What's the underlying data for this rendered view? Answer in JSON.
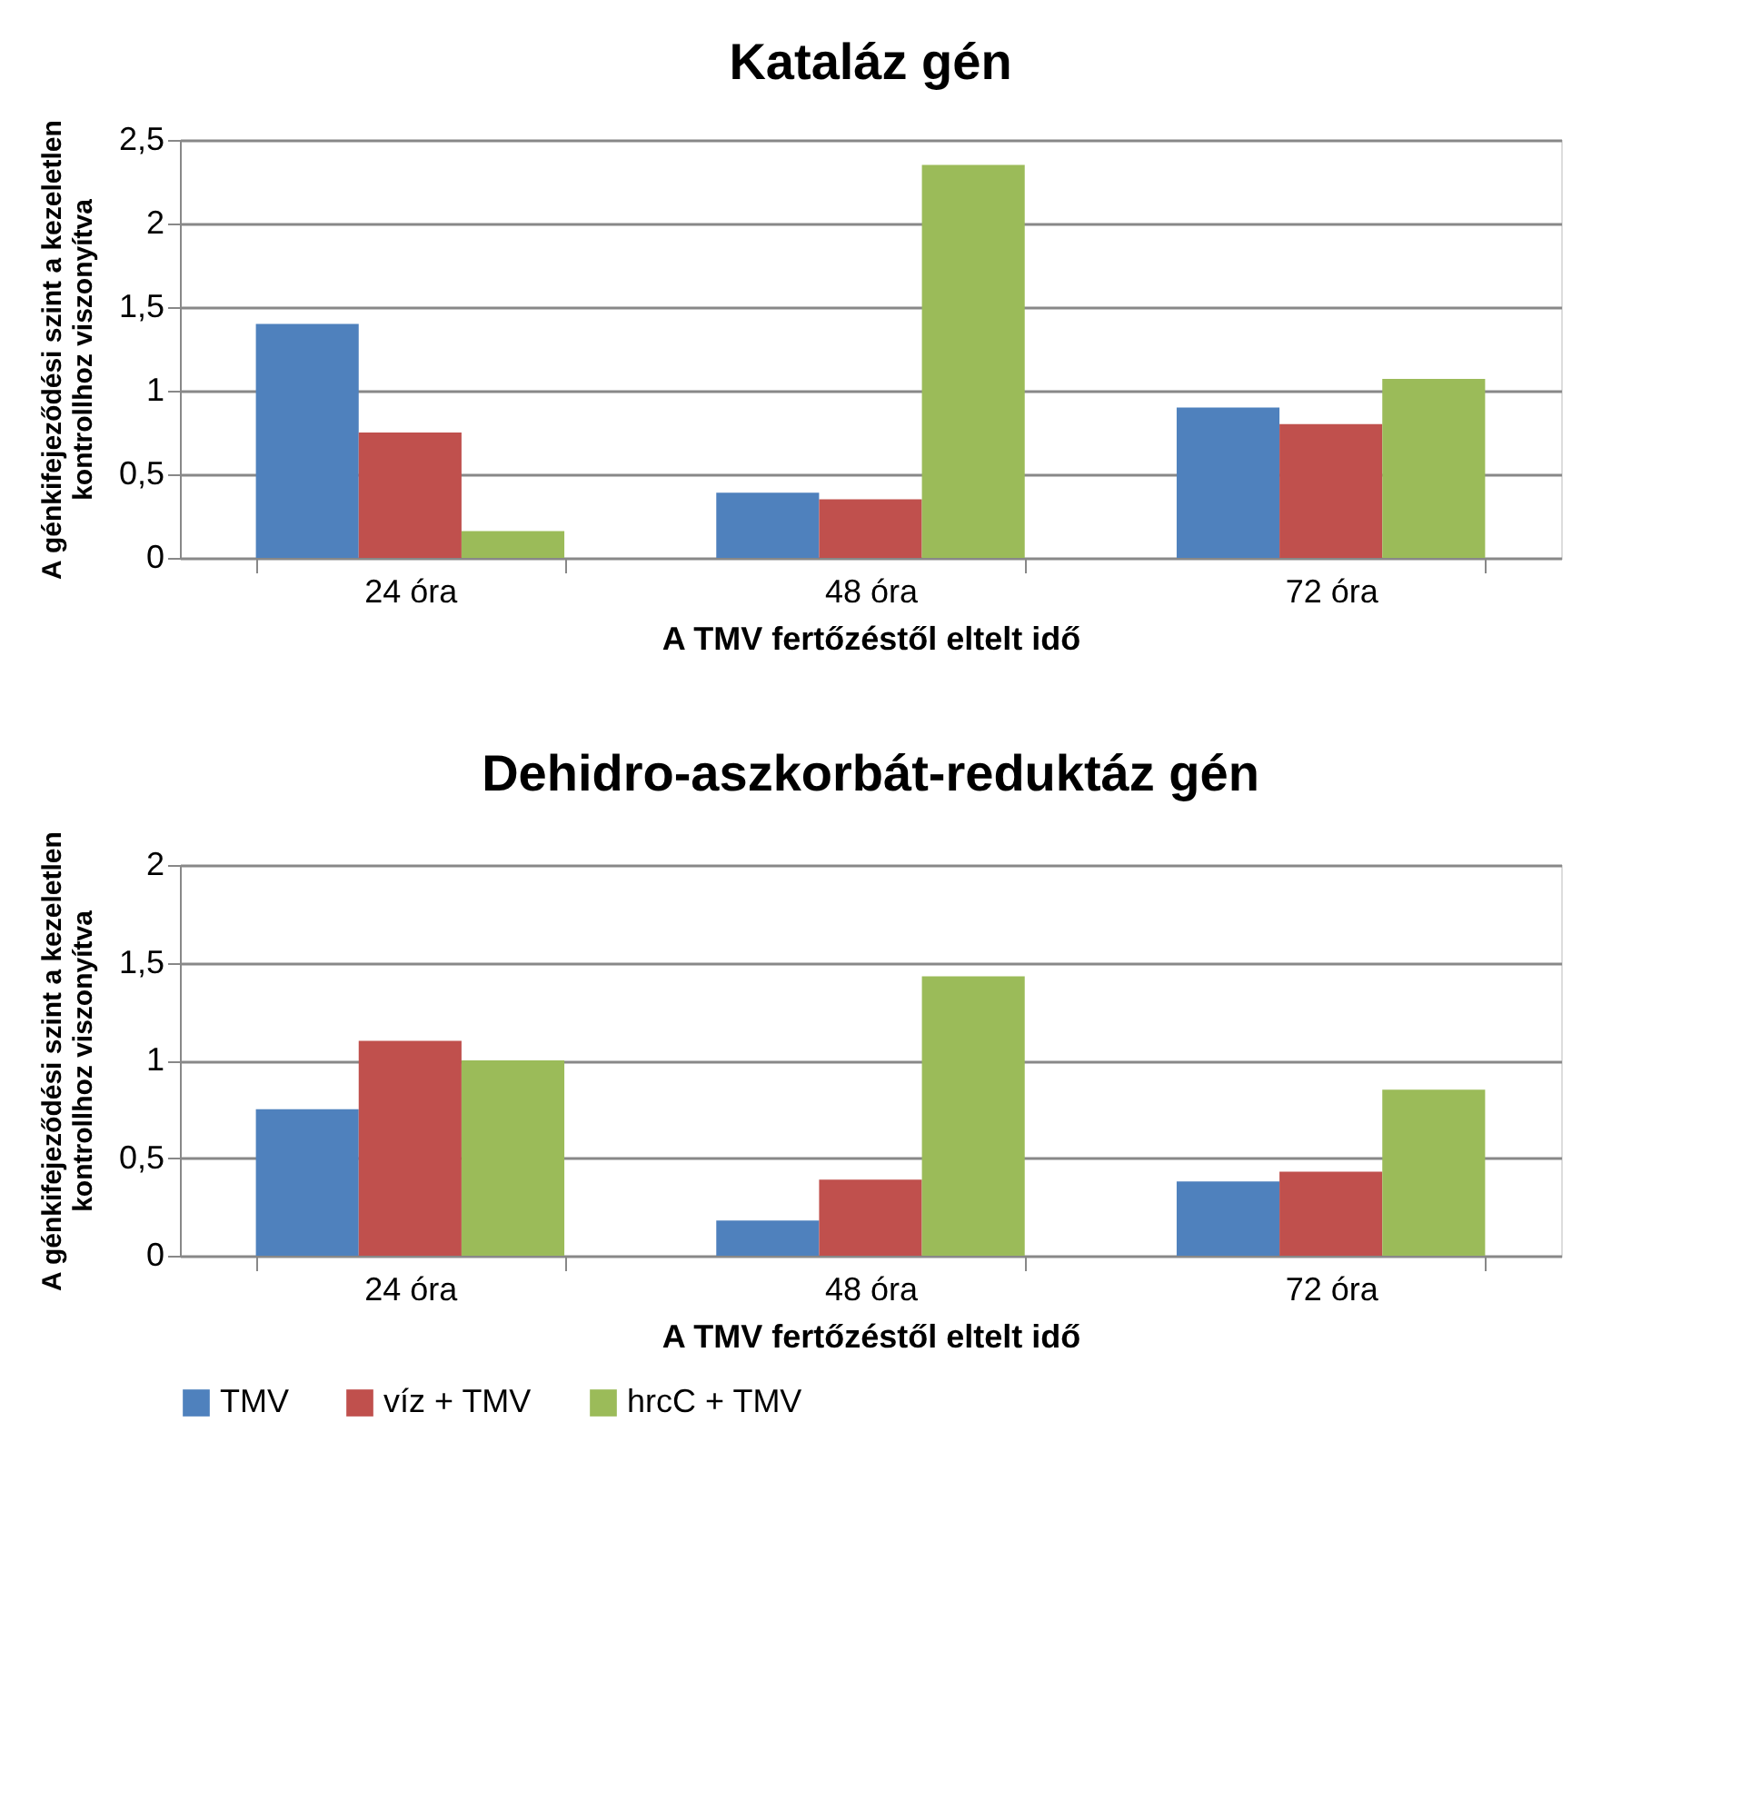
{
  "chart_data": [
    {
      "type": "bar",
      "title": "Kataláz gén",
      "xlabel": "A TMV fertőzéstől eltelt idő",
      "ylabel": "A génkifejeződési szint a kezeletlen\nkontrollhoz viszonyítva",
      "categories": [
        "24 óra",
        "48 óra",
        "72 óra"
      ],
      "series": [
        {
          "color": "#4f81bd",
          "values": [
            1.4,
            0.39,
            0.9
          ]
        },
        {
          "color": "#c0504d",
          "values": [
            0.75,
            0.35,
            0.8
          ]
        },
        {
          "color": "#9bbb59",
          "values": [
            0.16,
            2.35,
            1.07
          ]
        }
      ],
      "ylim": [
        0,
        2.5
      ],
      "yticks": [
        0,
        {
          "value": 0.5,
          "label": "0,5"
        },
        1,
        {
          "value": 1.5,
          "label": "1,5"
        },
        2,
        {
          "value": 2.5,
          "label": "2,5"
        }
      ],
      "grid": "y",
      "legend": false
    },
    {
      "type": "bar",
      "title": "Dehidro-aszkorbát-reduktáz gén",
      "xlabel": "A TMV fertőzéstől eltelt idő",
      "ylabel": "A génkifejeződési szint a kezeletlen\nkontrollhoz viszonyítva",
      "categories": [
        "24 óra",
        "48 óra",
        "72 óra"
      ],
      "series": [
        {
          "name": "TMV",
          "color": "#4f81bd",
          "values": [
            0.75,
            0.18,
            0.38
          ]
        },
        {
          "name": "víz + TMV",
          "color": "#c0504d",
          "values": [
            1.1,
            0.39,
            0.43
          ]
        },
        {
          "name": "hrcC + TMV",
          "color": "#9bbb59",
          "values": [
            1.0,
            1.43,
            0.85
          ]
        }
      ],
      "ylim": [
        0,
        2
      ],
      "yticks": [
        0,
        {
          "value": 0.5,
          "label": "0,5"
        },
        1,
        {
          "value": 1.5,
          "label": "1,5"
        },
        2
      ],
      "grid": "y",
      "legend": "bottom"
    }
  ]
}
